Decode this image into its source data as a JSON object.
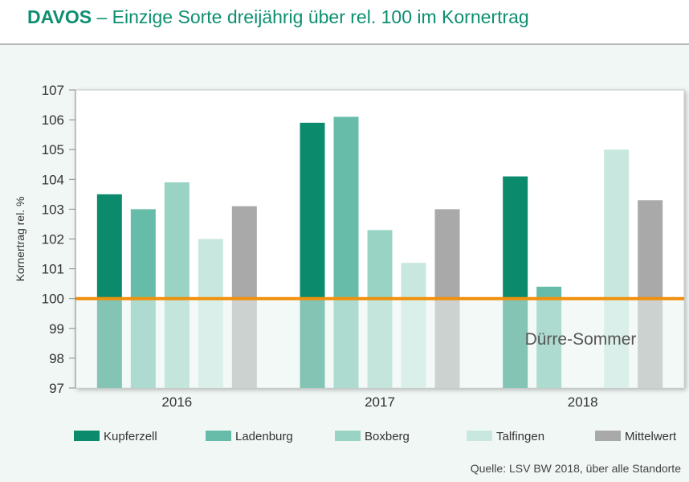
{
  "header": {
    "title_bold": "DAVOS",
    "title_rest": " – Einzige Sorte dreijährig über rel. 100 im Kornertrag"
  },
  "chart_data": {
    "type": "bar",
    "title": "DAVOS – Einzige Sorte dreijährig über rel. 100 im Kornertrag",
    "xlabel": "",
    "ylabel": "Kornertrag rel. %",
    "ylim": [
      97,
      107
    ],
    "yticks": [
      "97",
      "98",
      "99",
      "100",
      "101",
      "102",
      "103",
      "104",
      "105",
      "106",
      "107"
    ],
    "categories": [
      "2016",
      "2017",
      "2018"
    ],
    "series": [
      {
        "name": "Kupferzell",
        "color": "#0b8b6c",
        "values": [
          103.5,
          105.9,
          104.1
        ]
      },
      {
        "name": "Ladenburg",
        "color": "#66bca8",
        "values": [
          103.0,
          106.1,
          100.4
        ]
      },
      {
        "name": "Boxberg",
        "color": "#98d3c4",
        "values": [
          103.9,
          102.3,
          null
        ]
      },
      {
        "name": "Talfingen",
        "color": "#c8e8df",
        "values": [
          102.0,
          101.2,
          105.0
        ]
      },
      {
        "name": "Mittelwert",
        "color": "#a9a9a9",
        "values": [
          103.1,
          103.0,
          103.3
        ]
      }
    ],
    "reference_line": {
      "value": 100,
      "color": "#f0900f"
    },
    "annotation": "Dürre-Sommer",
    "legend_position": "bottom"
  },
  "source": "Quelle: LSV BW 2018, über alle Standorte"
}
